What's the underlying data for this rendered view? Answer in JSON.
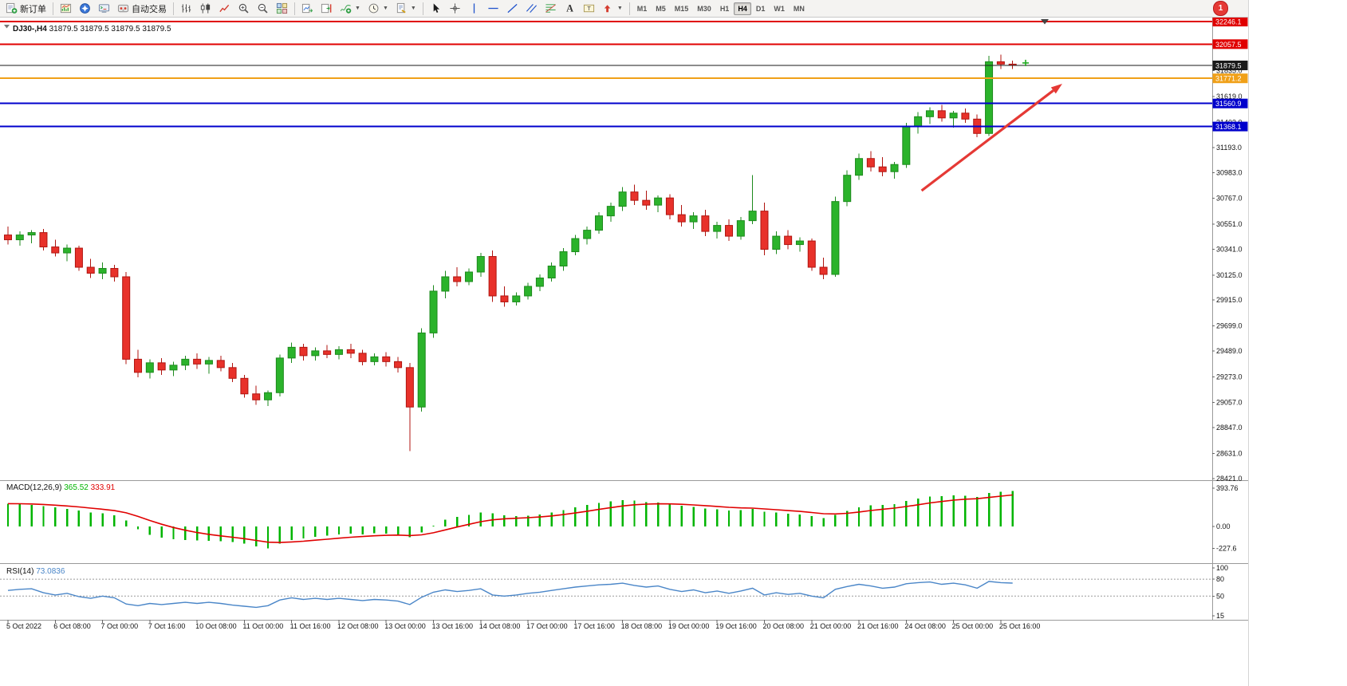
{
  "toolbar": {
    "new_order": {
      "label": "新订单",
      "icon": "new-order-icon"
    },
    "autotrading": {
      "label": "自动交易",
      "icon": "autotrading-icon"
    },
    "window_icons": [
      "new-chart-icon",
      "navigator-icon",
      "terminal-icon"
    ],
    "chart_tool_icons": [
      "bar-chart-icon",
      "candlestick-icon",
      "line-chart-icon",
      "zoom-in-icon",
      "zoom-out-icon",
      "tile-windows-icon"
    ],
    "chart_option_icons": [
      "auto-scroll-icon",
      "chart-shift-icon"
    ],
    "dropdown_icons": [
      "indicators-icon",
      "periods-icon",
      "templates-icon"
    ],
    "object_icons": [
      "cursor-icon",
      "crosshair-icon",
      "vline-icon",
      "hline-icon",
      "trendline-icon",
      "channel-icon",
      "fibo-icon",
      "text-icon",
      "label-icon",
      "arrows-icon"
    ],
    "timeframes": [
      "M1",
      "M5",
      "M15",
      "M30",
      "H1",
      "H4",
      "D1",
      "W1",
      "MN"
    ],
    "active_timeframe": "H4",
    "notification_count": "1"
  },
  "chart_data": {
    "type": "candlestick",
    "title": {
      "symbol_period": "DJ30-,H4",
      "quotes": "31879.5 31879.5 31879.5 31879.5"
    },
    "current_price": 31879.5,
    "colors": {
      "bull": "#2bb32b",
      "bear": "#e8312a",
      "macd_hist": "#00b400",
      "macd_signal": "#e00000",
      "rsi_line": "#4a86c8",
      "arrow": "#e53935"
    },
    "price_axis": {
      "visible_range": [
        28405,
        32267
      ],
      "ticks": [
        "32045.0",
        "31835.0",
        "31619.0",
        "31403.0",
        "31193.0",
        "30983.0",
        "30767.0",
        "30551.0",
        "30341.0",
        "30125.0",
        "29915.0",
        "29699.0",
        "29489.0",
        "29273.0",
        "29057.0",
        "28847.0",
        "28631.0",
        "28421.0"
      ],
      "badges": [
        {
          "label": "32246.1",
          "price": 32246.1,
          "color": "#e00000"
        },
        {
          "label": "32057.5",
          "price": 32057.5,
          "color": "#e00000"
        },
        {
          "label": "31879.5",
          "price": 31879.5,
          "color": "#1a1a1a"
        },
        {
          "label": "31771.2",
          "price": 31771.2,
          "color": "#f0a018"
        },
        {
          "label": "31560.9",
          "price": 31560.9,
          "color": "#0000cc"
        },
        {
          "label": "31368.1",
          "price": 31368.1,
          "color": "#0000cc"
        }
      ]
    },
    "horizontal_lines": [
      {
        "price": 32246.1,
        "color": "#e00000",
        "width": 2
      },
      {
        "price": 32057.5,
        "color": "#e00000",
        "width": 2
      },
      {
        "price": 31879.5,
        "color": "#1a1a1a",
        "width": 1
      },
      {
        "price": 31771.2,
        "color": "#f0a018",
        "width": 2
      },
      {
        "price": 31560.9,
        "color": "#0000cc",
        "width": 2
      },
      {
        "price": 31368.1,
        "color": "#0000cc",
        "width": 2
      }
    ],
    "x_labels": [
      "5 Oct 2022",
      "6 Oct 08:00",
      "7 Oct 00:00",
      "7 Oct 16:00",
      "10 Oct 08:00",
      "11 Oct 00:00",
      "11 Oct 16:00",
      "12 Oct 08:00",
      "13 Oct 00:00",
      "13 Oct 16:00",
      "14 Oct 08:00",
      "17 Oct 00:00",
      "17 Oct 16:00",
      "18 Oct 08:00",
      "19 Oct 00:00",
      "19 Oct 16:00",
      "20 Oct 08:00",
      "21 Oct 00:00",
      "21 Oct 16:00",
      "24 Oct 08:00",
      "25 Oct 00:00",
      "25 Oct 16:00"
    ],
    "label_step": 4,
    "candles_ohlc": [
      [
        30460,
        30530,
        30380,
        30420
      ],
      [
        30420,
        30490,
        30370,
        30460
      ],
      [
        30460,
        30500,
        30390,
        30480
      ],
      [
        30480,
        30510,
        30330,
        30360
      ],
      [
        30360,
        30420,
        30280,
        30310
      ],
      [
        30310,
        30380,
        30240,
        30350
      ],
      [
        30350,
        30370,
        30160,
        30190
      ],
      [
        30190,
        30260,
        30100,
        30140
      ],
      [
        30140,
        30230,
        30090,
        30180
      ],
      [
        30180,
        30210,
        30070,
        30110
      ],
      [
        30110,
        30150,
        29380,
        29420
      ],
      [
        29420,
        29500,
        29270,
        29310
      ],
      [
        29310,
        29420,
        29260,
        29390
      ],
      [
        29390,
        29430,
        29290,
        29330
      ],
      [
        29330,
        29400,
        29280,
        29370
      ],
      [
        29370,
        29450,
        29330,
        29420
      ],
      [
        29420,
        29470,
        29340,
        29380
      ],
      [
        29380,
        29440,
        29300,
        29410
      ],
      [
        29410,
        29450,
        29320,
        29350
      ],
      [
        29350,
        29390,
        29230,
        29260
      ],
      [
        29260,
        29290,
        29100,
        29130
      ],
      [
        29130,
        29200,
        29040,
        29080
      ],
      [
        29080,
        29160,
        29030,
        29140
      ],
      [
        29140,
        29460,
        29110,
        29430
      ],
      [
        29430,
        29560,
        29390,
        29520
      ],
      [
        29520,
        29550,
        29410,
        29450
      ],
      [
        29450,
        29520,
        29410,
        29490
      ],
      [
        29490,
        29540,
        29430,
        29460
      ],
      [
        29460,
        29530,
        29420,
        29500
      ],
      [
        29500,
        29550,
        29430,
        29470
      ],
      [
        29470,
        29500,
        29370,
        29400
      ],
      [
        29400,
        29470,
        29370,
        29440
      ],
      [
        29440,
        29480,
        29360,
        29400
      ],
      [
        29400,
        29440,
        29310,
        29350
      ],
      [
        29350,
        29390,
        28650,
        29020
      ],
      [
        29020,
        29680,
        28980,
        29640
      ],
      [
        29640,
        30040,
        29600,
        29990
      ],
      [
        29990,
        30160,
        29930,
        30110
      ],
      [
        30110,
        30190,
        30030,
        30070
      ],
      [
        30070,
        30180,
        30040,
        30150
      ],
      [
        30150,
        30310,
        30110,
        30280
      ],
      [
        30280,
        30330,
        29900,
        29950
      ],
      [
        29950,
        30030,
        29860,
        29900
      ],
      [
        29900,
        29980,
        29870,
        29950
      ],
      [
        29950,
        30060,
        29920,
        30030
      ],
      [
        30030,
        30130,
        29990,
        30100
      ],
      [
        30100,
        30230,
        30070,
        30200
      ],
      [
        30200,
        30350,
        30160,
        30320
      ],
      [
        30320,
        30460,
        30290,
        30430
      ],
      [
        30430,
        30530,
        30380,
        30500
      ],
      [
        30500,
        30650,
        30470,
        30620
      ],
      [
        30620,
        30730,
        30570,
        30700
      ],
      [
        30700,
        30860,
        30660,
        30820
      ],
      [
        30820,
        30880,
        30710,
        30750
      ],
      [
        30750,
        30830,
        30670,
        30710
      ],
      [
        30710,
        30790,
        30650,
        30770
      ],
      [
        30770,
        30800,
        30590,
        30630
      ],
      [
        30630,
        30710,
        30530,
        30570
      ],
      [
        30570,
        30650,
        30510,
        30620
      ],
      [
        30620,
        30670,
        30450,
        30490
      ],
      [
        30490,
        30570,
        30430,
        30540
      ],
      [
        30540,
        30590,
        30410,
        30450
      ],
      [
        30450,
        30610,
        30420,
        30580
      ],
      [
        30580,
        30960,
        30550,
        30660
      ],
      [
        30660,
        30730,
        30290,
        30340
      ],
      [
        30340,
        30490,
        30300,
        30450
      ],
      [
        30450,
        30500,
        30340,
        30380
      ],
      [
        30380,
        30440,
        30320,
        30410
      ],
      [
        30410,
        30430,
        30160,
        30190
      ],
      [
        30190,
        30270,
        30090,
        30130
      ],
      [
        30130,
        30780,
        30110,
        30740
      ],
      [
        30740,
        31000,
        30700,
        30960
      ],
      [
        30960,
        31140,
        30920,
        31100
      ],
      [
        31100,
        31160,
        30990,
        31030
      ],
      [
        31030,
        31110,
        30950,
        30990
      ],
      [
        30990,
        31070,
        30930,
        31050
      ],
      [
        31050,
        31400,
        31020,
        31370
      ],
      [
        31370,
        31490,
        31310,
        31450
      ],
      [
        31450,
        31530,
        31390,
        31500
      ],
      [
        31500,
        31550,
        31410,
        31440
      ],
      [
        31440,
        31500,
        31360,
        31480
      ],
      [
        31480,
        31520,
        31400,
        31430
      ],
      [
        31430,
        31470,
        31280,
        31310
      ],
      [
        31310,
        31960,
        31290,
        31910
      ],
      [
        31910,
        31970,
        31850,
        31890
      ],
      [
        31890,
        31920,
        31850,
        31879.5
      ]
    ],
    "indicators": [
      {
        "name": "MACD",
        "label": "MACD(12,26,9)",
        "values_label": [
          "365.52",
          "333.91"
        ],
        "axis_ticks": [
          "393.76",
          "0.00",
          "-227.6"
        ],
        "histogram": [
          235,
          228,
          222,
          210,
          195,
          182,
          165,
          145,
          135,
          115,
          60,
          -30,
          -85,
          -115,
          -130,
          -138,
          -145,
          -148,
          -152,
          -162,
          -178,
          -205,
          -227,
          -175,
          -140,
          -125,
          -105,
          -95,
          -82,
          -75,
          -80,
          -70,
          -72,
          -80,
          -110,
          -60,
          10,
          70,
          100,
          120,
          145,
          135,
          115,
          105,
          112,
          125,
          145,
          170,
          198,
          222,
          242,
          258,
          272,
          268,
          252,
          245,
          230,
          212,
          200,
          185,
          178,
          165,
          170,
          182,
          152,
          142,
          130,
          125,
          105,
          88,
          118,
          158,
          198,
          218,
          222,
          230,
          262,
          288,
          308,
          312,
          318,
          315,
          305,
          345,
          358,
          365.52
        ]
      },
      {
        "name": "RSI",
        "label": "RSI(14)",
        "value_label": "73.0836",
        "axis_ticks": [
          "100",
          "80",
          "50",
          "15"
        ],
        "levels": [
          80,
          50
        ],
        "values": [
          60,
          62,
          63,
          56,
          52,
          55,
          49,
          46,
          50,
          47,
          36,
          33,
          37,
          35,
          37,
          39,
          37,
          39,
          37,
          34,
          32,
          30,
          33,
          43,
          47,
          44,
          46,
          44,
          46,
          44,
          42,
          44,
          43,
          41,
          35,
          48,
          57,
          61,
          58,
          60,
          63,
          52,
          50,
          52,
          55,
          57,
          60,
          63,
          66,
          68,
          70,
          71,
          73,
          69,
          66,
          68,
          62,
          58,
          61,
          56,
          59,
          55,
          59,
          64,
          52,
          56,
          53,
          55,
          50,
          47,
          62,
          67,
          71,
          68,
          64,
          66,
          72,
          74,
          75,
          71,
          73,
          70,
          64,
          76,
          74,
          73.08
        ]
      }
    ],
    "annotations": [
      {
        "type": "arrow",
        "color": "#e53935",
        "from_bar": 77.3,
        "from_price": 30831,
        "to_bar": 89.2,
        "to_price": 31726
      },
      {
        "type": "cross-marker",
        "color": "#22aa22",
        "bar": 86.1,
        "price": 31900
      }
    ]
  }
}
